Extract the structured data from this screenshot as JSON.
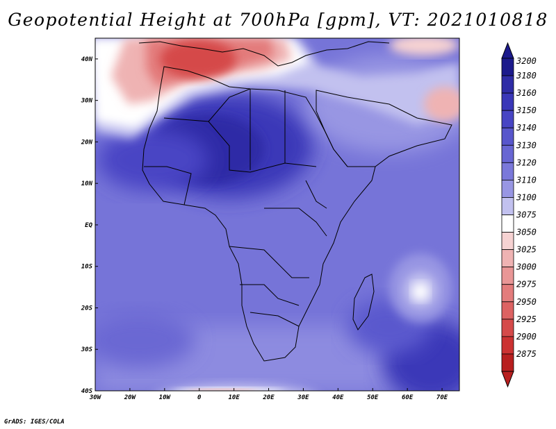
{
  "title": "Geopotential Height at 700hPa [gpm], VT: 2021010818",
  "credit": "GrADS: IGES/COLA",
  "map": {
    "lat_ticks": [
      "40N",
      "30N",
      "20N",
      "10N",
      "EQ",
      "10S",
      "20S",
      "30S",
      "40S"
    ],
    "lon_ticks": [
      "30W",
      "20W",
      "10W",
      "0",
      "10E",
      "20E",
      "30E",
      "40E",
      "50E",
      "60E",
      "70E"
    ],
    "lon_range": [
      -30,
      75
    ],
    "lat_range": [
      -40,
      45
    ]
  },
  "colorbar": {
    "levels": [
      "3200",
      "3180",
      "3160",
      "3150",
      "3140",
      "3130",
      "3120",
      "3110",
      "3100",
      "3075",
      "3050",
      "3025",
      "3000",
      "2975",
      "2950",
      "2925",
      "2900",
      "2875"
    ],
    "colors": [
      "#1c1a8c",
      "#2f2ca6",
      "#3a37b8",
      "#4845c4",
      "#5856cc",
      "#6866d3",
      "#7a78da",
      "#9896e3",
      "#c2c1ef",
      "#ffffff",
      "#f6d2d2",
      "#efb3b3",
      "#e99696",
      "#e37c7c",
      "#dd6262",
      "#d54a4a",
      "#cc3232",
      "#b81f1f"
    ]
  }
}
